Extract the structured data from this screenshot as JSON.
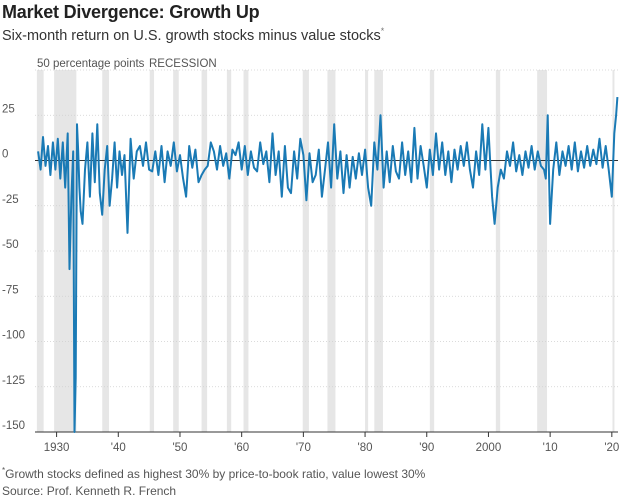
{
  "header": {
    "title": "Market Divergence: Growth Up",
    "subtitle": "Six-month return on U.S. growth stocks minus value stocks",
    "subtitle_marker": "*"
  },
  "footer": {
    "footnote_marker": "*",
    "footnote": "Growth stocks defined as highest 30% by price-to-book ratio, value lowest 30%",
    "source": "Source: Prof. Kenneth R. French"
  },
  "chart_data": {
    "type": "line",
    "ylim": [
      -150,
      50
    ],
    "xlim": [
      1926.5,
      2021
    ],
    "y_unit_label": "50 percentage points",
    "recession_label": "RECESSION",
    "yticks": [
      {
        "value": 50,
        "label": ""
      },
      {
        "value": 25,
        "label": "25"
      },
      {
        "value": 0,
        "label": "0"
      },
      {
        "value": -25,
        "label": "-25"
      },
      {
        "value": -50,
        "label": "-50"
      },
      {
        "value": -75,
        "label": "-75"
      },
      {
        "value": -100,
        "label": "-100"
      },
      {
        "value": -125,
        "label": "-125"
      },
      {
        "value": -150,
        "label": "-150"
      }
    ],
    "xticks": [
      {
        "value": 1930,
        "label": "1930"
      },
      {
        "value": 1940,
        "label": "'40"
      },
      {
        "value": 1950,
        "label": "'50"
      },
      {
        "value": 1960,
        "label": "'60"
      },
      {
        "value": 1970,
        "label": "'70"
      },
      {
        "value": 1980,
        "label": "'80"
      },
      {
        "value": 1990,
        "label": "'90"
      },
      {
        "value": 2000,
        "label": "2000"
      },
      {
        "value": 2010,
        "label": "'10"
      },
      {
        "value": 2020,
        "label": "'20"
      }
    ],
    "recessions": [
      [
        1926.8,
        1927.9
      ],
      [
        1929.6,
        1933.2
      ],
      [
        1937.4,
        1938.5
      ],
      [
        1945.1,
        1945.8
      ],
      [
        1948.9,
        1949.8
      ],
      [
        1953.5,
        1954.4
      ],
      [
        1957.6,
        1958.3
      ],
      [
        1960.3,
        1961.1
      ],
      [
        1969.9,
        1970.9
      ],
      [
        1973.9,
        1975.2
      ],
      [
        1980.0,
        1980.5
      ],
      [
        1981.5,
        1982.9
      ],
      [
        1990.5,
        1991.2
      ],
      [
        2001.2,
        2001.9
      ],
      [
        2007.9,
        2009.5
      ],
      [
        2020.1,
        2020.4
      ]
    ],
    "series": [
      {
        "color": "#1a7ab5",
        "x": [
          1927.0,
          1927.4,
          1927.8,
          1928.2,
          1928.6,
          1929.0,
          1929.4,
          1929.8,
          1930.2,
          1930.6,
          1931.0,
          1931.4,
          1931.8,
          1932.1,
          1932.4,
          1932.7,
          1932.9,
          1933.1,
          1933.3,
          1933.5,
          1933.7,
          1933.9,
          1934.2,
          1934.6,
          1935.0,
          1935.4,
          1935.8,
          1936.2,
          1936.6,
          1937.0,
          1937.4,
          1937.8,
          1938.2,
          1938.6,
          1939.0,
          1939.4,
          1939.8,
          1940.2,
          1940.6,
          1941.0,
          1941.5,
          1942.0,
          1942.5,
          1943.0,
          1943.5,
          1944.0,
          1944.5,
          1945.0,
          1945.5,
          1946.0,
          1946.5,
          1947.0,
          1947.5,
          1948.0,
          1948.5,
          1949.0,
          1949.5,
          1950.0,
          1950.5,
          1951.0,
          1951.5,
          1952.0,
          1952.5,
          1953.0,
          1953.5,
          1954.0,
          1954.5,
          1955.0,
          1955.5,
          1956.0,
          1956.5,
          1957.0,
          1957.5,
          1958.0,
          1958.5,
          1959.0,
          1959.5,
          1960.0,
          1960.5,
          1961.0,
          1961.5,
          1962.0,
          1962.5,
          1963.0,
          1963.5,
          1964.0,
          1964.5,
          1965.0,
          1965.5,
          1966.0,
          1966.5,
          1967.0,
          1967.5,
          1968.0,
          1968.5,
          1969.0,
          1969.5,
          1970.0,
          1970.5,
          1971.0,
          1971.5,
          1972.0,
          1972.5,
          1973.0,
          1973.5,
          1974.0,
          1974.5,
          1975.0,
          1975.5,
          1976.0,
          1976.5,
          1977.0,
          1977.5,
          1978.0,
          1978.5,
          1979.0,
          1979.5,
          1980.0,
          1980.5,
          1981.0,
          1981.5,
          1982.0,
          1982.5,
          1983.0,
          1983.5,
          1984.0,
          1984.5,
          1985.0,
          1985.5,
          1986.0,
          1986.5,
          1987.0,
          1987.5,
          1988.0,
          1988.5,
          1989.0,
          1989.5,
          1990.0,
          1990.5,
          1991.0,
          1991.5,
          1992.0,
          1992.5,
          1993.0,
          1993.5,
          1994.0,
          1994.5,
          1995.0,
          1995.5,
          1996.0,
          1996.5,
          1997.0,
          1997.5,
          1998.0,
          1998.5,
          1999.0,
          1999.5,
          2000.0,
          2000.3,
          2000.6,
          2001.0,
          2001.5,
          2002.0,
          2002.5,
          2003.0,
          2003.5,
          2004.0,
          2004.5,
          2005.0,
          2005.5,
          2006.0,
          2006.5,
          2007.0,
          2007.5,
          2008.0,
          2008.5,
          2009.0,
          2009.3,
          2009.6,
          2010.0,
          2010.5,
          2011.0,
          2011.5,
          2012.0,
          2012.5,
          2013.0,
          2013.5,
          2014.0,
          2014.5,
          2015.0,
          2015.5,
          2016.0,
          2016.5,
          2017.0,
          2017.5,
          2018.0,
          2018.5,
          2019.0,
          2019.5,
          2020.0,
          2020.4,
          2020.7,
          2020.9
        ],
        "y": [
          5,
          -5,
          13,
          -3,
          8,
          -8,
          10,
          -5,
          12,
          -10,
          10,
          -15,
          15,
          -60,
          -20,
          5,
          -150,
          -120,
          20,
          5,
          -15,
          -28,
          -35,
          -5,
          10,
          -20,
          15,
          -12,
          20,
          -18,
          -30,
          -5,
          8,
          -25,
          -10,
          10,
          -15,
          5,
          -8,
          3,
          -40,
          12,
          -10,
          5,
          8,
          -3,
          10,
          -5,
          -6,
          5,
          -8,
          8,
          -12,
          5,
          -3,
          10,
          -6,
          3,
          -10,
          -20,
          8,
          -4,
          6,
          -12,
          -8,
          -5,
          -3,
          10,
          5,
          -5,
          8,
          -3,
          4,
          -10,
          6,
          3,
          10,
          -5,
          8,
          -8,
          5,
          -4,
          -6,
          10,
          -2,
          5,
          -12,
          15,
          -8,
          5,
          -20,
          8,
          -15,
          -18,
          5,
          -10,
          12,
          3,
          -22,
          4,
          -12,
          -8,
          6,
          -20,
          -5,
          10,
          -15,
          20,
          -10,
          5,
          -18,
          3,
          -15,
          2,
          -10,
          4,
          -8,
          6,
          -15,
          -25,
          10,
          -5,
          25,
          -15,
          5,
          -12,
          8,
          -6,
          -10,
          10,
          -8,
          5,
          -12,
          18,
          -10,
          8,
          -3,
          -15,
          6,
          -8,
          15,
          -5,
          10,
          -8,
          5,
          -12,
          6,
          -5,
          8,
          -3,
          10,
          -5,
          -15,
          5,
          -8,
          20,
          -5,
          18,
          -2,
          -20,
          -35,
          -15,
          -5,
          -10,
          5,
          -3,
          10,
          -6,
          3,
          -8,
          5,
          -4,
          8,
          -5,
          5,
          -3,
          -5,
          -10,
          25,
          -35,
          -5,
          10,
          -8,
          5,
          -3,
          8,
          -5,
          10,
          -6,
          5,
          -4,
          8,
          -3,
          6,
          -2,
          12,
          -4,
          8,
          -5,
          -20,
          15,
          25,
          35
        ]
      }
    ]
  }
}
